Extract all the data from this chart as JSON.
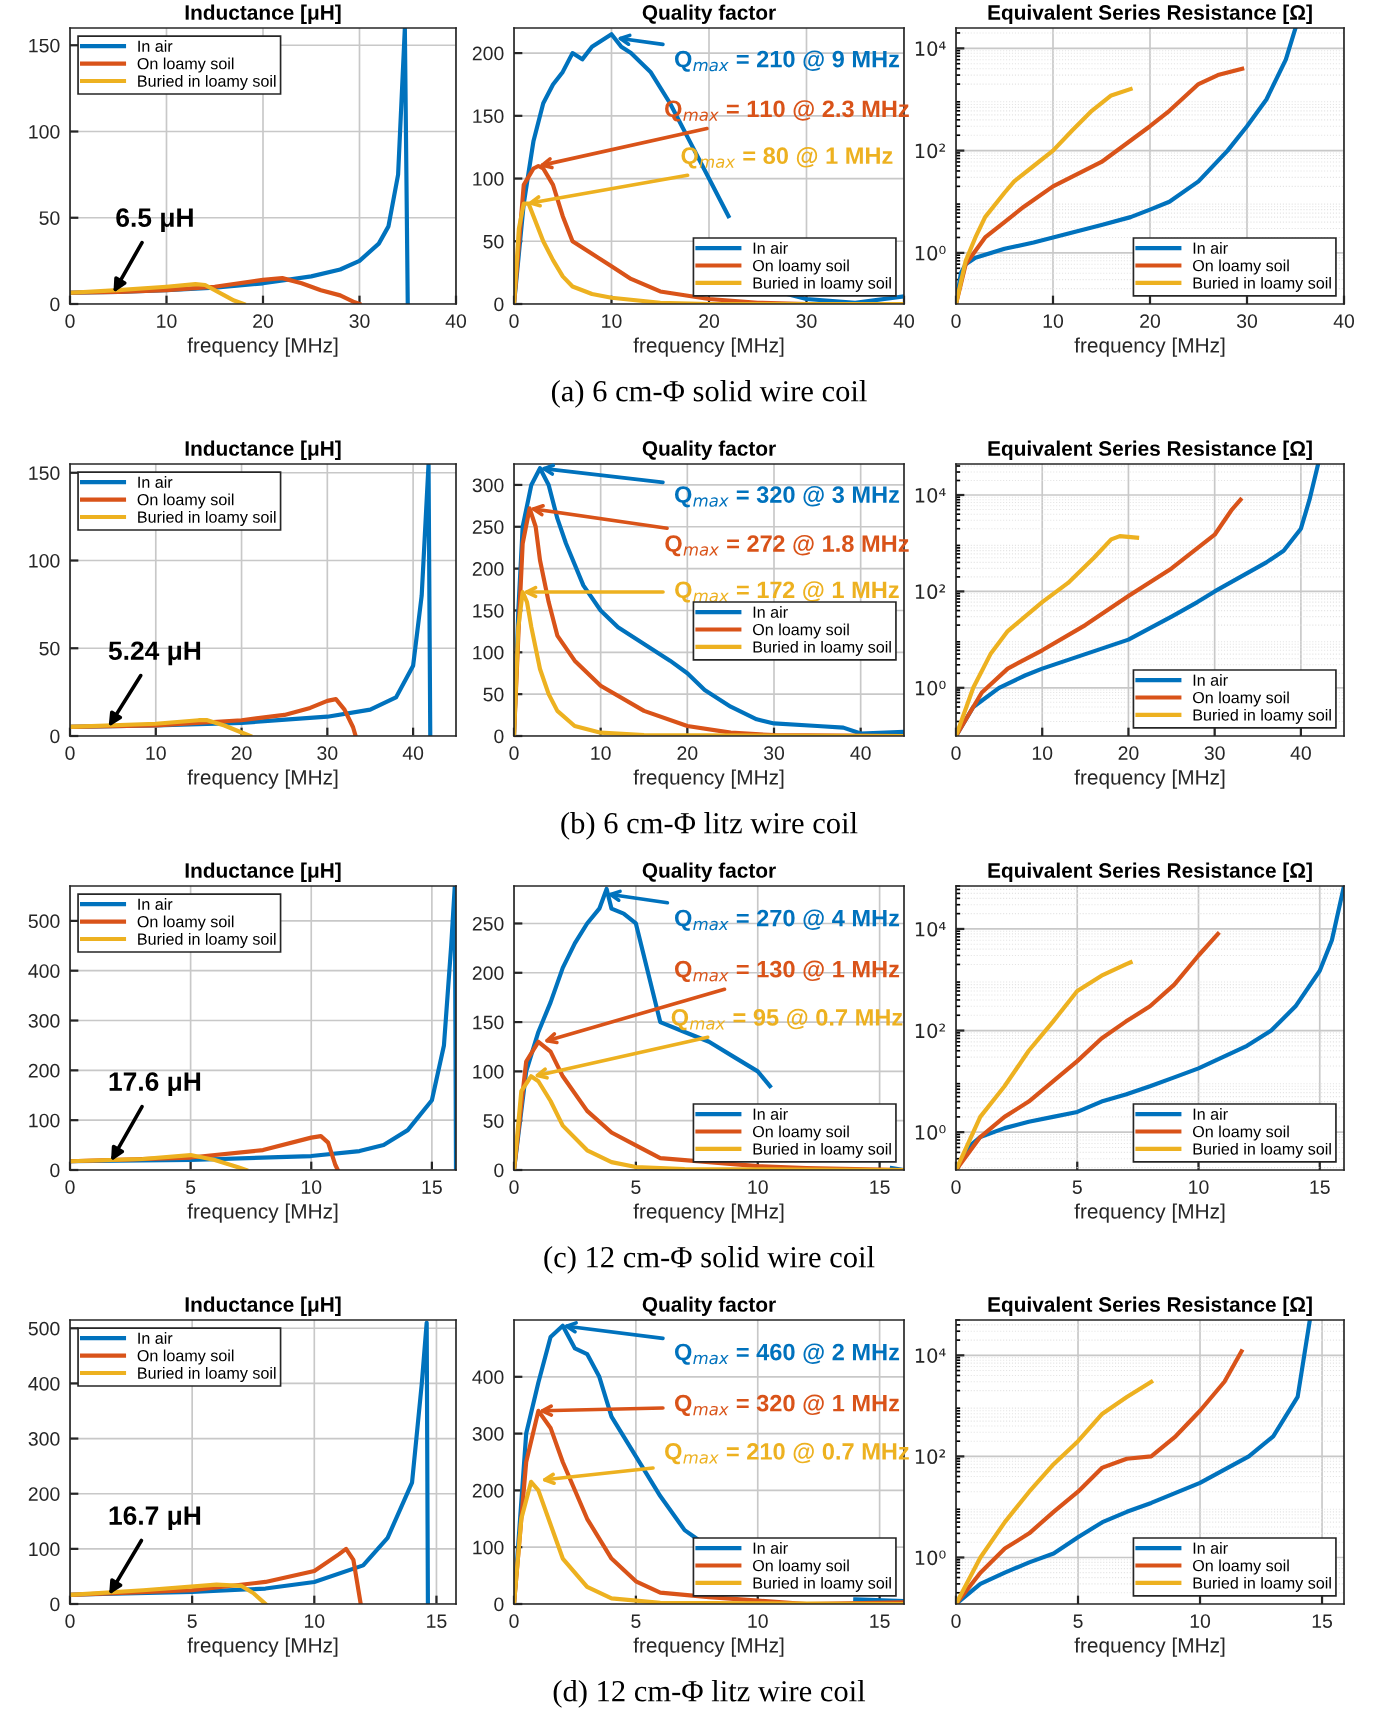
{
  "chart_data": [
    {
      "type": "line",
      "title": "Inductance [μH]",
      "xlabel": "frequency [MHz]",
      "xlim": [
        0,
        40
      ],
      "xticks": [
        0,
        10,
        20,
        30,
        40
      ],
      "ylim": [
        0,
        160
      ],
      "yticks": [
        0,
        50,
        100,
        150
      ],
      "grid": true,
      "legend": "top left",
      "series": [
        {
          "name": "In air",
          "color": "#0072bd",
          "x": [
            0,
            5,
            10,
            15,
            20,
            25,
            28,
            30,
            32,
            33,
            34,
            34.7,
            35
          ],
          "values": [
            6.5,
            7,
            8,
            9.5,
            12,
            16,
            20,
            25,
            35,
            45,
            75,
            160,
            0
          ]
        },
        {
          "name": "On loamy soil",
          "color": "#d95319",
          "x": [
            0,
            5,
            10,
            15,
            20,
            22,
            24,
            26,
            28,
            29.5,
            30
          ],
          "values": [
            6.5,
            7,
            8,
            10,
            14,
            15,
            12,
            8,
            5,
            1,
            0
          ]
        },
        {
          "name": "Buried in loamy soil",
          "color": "#edb120",
          "x": [
            0,
            5,
            10,
            13,
            14,
            16,
            17,
            18
          ],
          "values": [
            6.5,
            8,
            10,
            11.5,
            11,
            5,
            2,
            0
          ]
        }
      ],
      "annotations": [
        {
          "text": "6.5 μH",
          "x": 4.5,
          "y": 6.5
        }
      ]
    },
    {
      "type": "line",
      "title": "Quality factor",
      "xlabel": "frequency [MHz]",
      "xlim": [
        0,
        40
      ],
      "xticks": [
        0,
        10,
        20,
        30,
        40
      ],
      "ylim": [
        0,
        220
      ],
      "yticks": [
        0,
        50,
        100,
        150,
        200
      ],
      "grid": true,
      "legend": "bottom right",
      "series": [
        {
          "name": "In air",
          "color": "#0072bd",
          "x": [
            0,
            1,
            2,
            3,
            4,
            5,
            6,
            7,
            8,
            9,
            10,
            11,
            12,
            14,
            16,
            18,
            20,
            22,
            24,
            27,
            28,
            30,
            35,
            40
          ],
          "values": [
            0,
            80,
            130,
            160,
            175,
            185,
            200,
            195,
            205,
            210,
            215,
            205,
            200,
            185,
            160,
            130,
            100,
            70,
            null,
            null,
            8,
            4,
            1,
            6
          ]
        },
        {
          "name": "On loamy soil",
          "color": "#d95319",
          "x": [
            0,
            1,
            2,
            2.5,
            3,
            4,
            5,
            6,
            7,
            8,
            10,
            12,
            15,
            20,
            25,
            30,
            40
          ],
          "values": [
            0,
            95,
            108,
            110,
            108,
            95,
            70,
            50,
            45,
            40,
            30,
            20,
            10,
            4,
            1,
            0,
            0
          ]
        },
        {
          "name": "Buried in loamy soil",
          "color": "#edb120",
          "x": [
            0,
            0.5,
            1,
            1.5,
            2,
            3,
            4,
            5,
            6,
            8,
            10,
            15,
            20,
            40
          ],
          "values": [
            0,
            60,
            80,
            80,
            70,
            50,
            35,
            22,
            14,
            8,
            5,
            1,
            0,
            0
          ]
        }
      ],
      "annotations": [
        {
          "text": "Q$_{max}$ = 210 @ 9 MHz",
          "x": 10.5,
          "y": 212
        },
        {
          "text": "Q$_{max}$ = 110 @ 2.3 MHz",
          "x": 2.5,
          "y": 110
        },
        {
          "text": "Q$_{max}$ = 80 @ 1 MHz",
          "x": 1.3,
          "y": 80
        },
        "(a) 6 cm-Φ solid wire coil"
      ]
    },
    {
      "type": "line",
      "title": "Equivalent Series Resistance [Ω]",
      "xlabel": "frequency [MHz]",
      "xlim": [
        0,
        40
      ],
      "xticks": [
        0,
        10,
        20,
        30,
        40
      ],
      "log": true,
      "ylim": [
        0.1,
        25000
      ],
      "yticks": [
        {
          "value": 1,
          "label": "10⁰"
        },
        {
          "value": 100,
          "label": "10²"
        },
        {
          "value": 10000,
          "label": "10⁴"
        }
      ],
      "grid": true,
      "legend": "bottom right",
      "series": [
        {
          "name": "In air",
          "color": "#0072bd",
          "x": [
            0,
            0.5,
            1,
            2,
            5,
            8,
            10,
            12,
            15,
            18,
            20,
            22,
            25,
            28,
            30,
            32,
            34,
            35
          ],
          "values": [
            0.1,
            0.4,
            0.6,
            0.8,
            1.2,
            1.6,
            2,
            2.5,
            3.5,
            5,
            7,
            10,
            25,
            100,
            300,
            1000,
            6000,
            25000
          ]
        },
        {
          "name": "On loamy soil",
          "color": "#d95319",
          "x": [
            0,
            1,
            3,
            5,
            7,
            10,
            15,
            20,
            22,
            25,
            27,
            29.5
          ],
          "values": [
            0.1,
            0.6,
            2,
            4,
            8,
            20,
            60,
            300,
            600,
            2000,
            3000,
            4000
          ]
        },
        {
          "name": "Buried in loamy soil",
          "color": "#edb120",
          "x": [
            0,
            1,
            2,
            3,
            5,
            6,
            8,
            10,
            12,
            14,
            16,
            18
          ],
          "values": [
            0.1,
            0.7,
            2,
            5,
            15,
            25,
            50,
            100,
            250,
            600,
            1200,
            1600
          ]
        }
      ]
    },
    {
      "type": "line",
      "title": "Inductance [μH]",
      "xlabel": "frequency [MHz]",
      "xlim": [
        0,
        45
      ],
      "xticks": [
        0,
        10,
        20,
        30,
        40
      ],
      "ylim": [
        0,
        155
      ],
      "yticks": [
        0,
        50,
        100,
        150
      ],
      "grid": true,
      "legend": "top left",
      "series": [
        {
          "name": "In air",
          "color": "#0072bd",
          "x": [
            0,
            10,
            20,
            30,
            35,
            38,
            40,
            41,
            41.8,
            42
          ],
          "values": [
            5.24,
            6,
            7.5,
            11,
            15,
            22,
            40,
            80,
            155,
            0
          ]
        },
        {
          "name": "On loamy soil",
          "color": "#d95319",
          "x": [
            0,
            10,
            20,
            25,
            28,
            30,
            31,
            32,
            33,
            33.3
          ],
          "values": [
            5.24,
            6,
            9,
            12,
            16,
            20,
            21,
            15,
            5,
            0
          ]
        },
        {
          "name": "Buried in loamy soil",
          "color": "#edb120",
          "x": [
            0,
            10,
            15,
            16,
            18,
            20,
            21
          ],
          "values": [
            5.24,
            7,
            9,
            9,
            6,
            2,
            0
          ]
        }
      ],
      "annotations": [
        {
          "text": "5.24 μH",
          "x": 4.5,
          "y": 5.24
        }
      ]
    },
    {
      "type": "line",
      "title": "Quality factor",
      "xlabel": "frequency [MHz]",
      "xlim": [
        0,
        45
      ],
      "xticks": [
        0,
        10,
        20,
        30,
        40
      ],
      "ylim": [
        0,
        325
      ],
      "yticks": [
        0,
        50,
        100,
        150,
        200,
        250,
        300
      ],
      "grid": true,
      "legend": "right",
      "series": [
        {
          "name": "In air",
          "color": "#0072bd",
          "x": [
            0,
            0.5,
            1,
            2,
            3,
            4,
            5,
            6,
            8,
            10,
            12,
            15,
            18,
            20,
            22,
            25,
            28,
            30,
            35,
            38,
            40,
            45
          ],
          "values": [
            0,
            150,
            250,
            300,
            320,
            300,
            260,
            230,
            180,
            150,
            130,
            110,
            90,
            75,
            55,
            35,
            20,
            15,
            12,
            10,
            3,
            5
          ]
        },
        {
          "name": "On loamy soil",
          "color": "#d95319",
          "x": [
            0,
            0.5,
            1,
            1.8,
            2.5,
            3,
            4,
            5,
            7,
            10,
            15,
            20,
            25,
            30,
            45
          ],
          "values": [
            0,
            120,
            230,
            272,
            250,
            210,
            160,
            120,
            90,
            60,
            30,
            12,
            4,
            1,
            0
          ]
        },
        {
          "name": "Buried in loamy soil",
          "color": "#edb120",
          "x": [
            0,
            0.5,
            1,
            1.5,
            2,
            3,
            4,
            5,
            7,
            10,
            15,
            45
          ],
          "values": [
            0,
            130,
            172,
            160,
            130,
            80,
            50,
            30,
            12,
            4,
            1,
            0
          ]
        }
      ],
      "annotations": [
        {
          "text": "Q$_{max}$ = 320 @ 3 MHz",
          "x": 3,
          "y": 320
        },
        {
          "text": "Q$_{max}$ = 272 @ 1.8 MHz",
          "x": 1.8,
          "y": 272
        },
        {
          "text": "Q$_{max}$ = 172 @ 1 MHz",
          "x": 1,
          "y": 172
        },
        "(b) 6 cm-Φ litz wire coil"
      ]
    },
    {
      "type": "line",
      "title": "Equivalent Series Resistance [Ω]",
      "xlabel": "frequency [MHz]",
      "xlim": [
        0,
        45
      ],
      "xticks": [
        0,
        10,
        20,
        30,
        40
      ],
      "log": true,
      "ylim": [
        0.1,
        44000
      ],
      "yticks": [
        {
          "value": 1,
          "label": "10⁰"
        },
        {
          "value": 100,
          "label": "10²"
        },
        {
          "value": 10000,
          "label": "10⁴"
        }
      ],
      "grid": true,
      "legend": "bottom right",
      "series": [
        {
          "name": "In air",
          "color": "#0072bd",
          "x": [
            0,
            2,
            5,
            8,
            10,
            15,
            20,
            25,
            28,
            30,
            33,
            36,
            38,
            40,
            41,
            42
          ],
          "values": [
            0.1,
            0.4,
            1,
            1.8,
            2.5,
            5,
            10,
            30,
            60,
            100,
            200,
            400,
            700,
            2000,
            8000,
            44000
          ]
        },
        {
          "name": "On loamy soil",
          "color": "#d95319",
          "x": [
            0,
            3,
            6,
            10,
            15,
            20,
            25,
            30,
            32,
            33
          ],
          "values": [
            0.1,
            0.8,
            2.5,
            6,
            20,
            80,
            300,
            1500,
            5000,
            8000
          ]
        },
        {
          "name": "Buried in loamy soil",
          "color": "#edb120",
          "x": [
            0,
            2,
            4,
            6,
            8,
            10,
            13,
            16,
            18,
            19,
            21
          ],
          "values": [
            0.1,
            1,
            5,
            15,
            30,
            60,
            150,
            500,
            1200,
            1400,
            1300
          ]
        }
      ]
    },
    {
      "type": "line",
      "title": "Inductance [μH]",
      "xlabel": "frequency [MHz]",
      "xlim": [
        0,
        16
      ],
      "xticks": [
        0,
        5,
        10,
        15
      ],
      "ylim": [
        0,
        570
      ],
      "yticks": [
        0,
        100,
        200,
        300,
        400,
        500
      ],
      "grid": true,
      "legend": "top left",
      "series": [
        {
          "name": "In air",
          "color": "#0072bd",
          "x": [
            0,
            5,
            10,
            12,
            13,
            14,
            15,
            15.5,
            15.8,
            15.95,
            16
          ],
          "values": [
            17.6,
            20,
            28,
            38,
            50,
            80,
            140,
            250,
            450,
            570,
            0
          ]
        },
        {
          "name": "On loamy soil",
          "color": "#d95319",
          "x": [
            0,
            5,
            8,
            10,
            10.4,
            10.7,
            11,
            11.1
          ],
          "values": [
            17.6,
            25,
            40,
            65,
            68,
            55,
            10,
            0
          ]
        },
        {
          "name": "Buried in loamy soil",
          "color": "#edb120",
          "x": [
            0,
            3,
            5,
            6,
            7,
            7.3
          ],
          "values": [
            17.6,
            22,
            30,
            20,
            5,
            0
          ]
        }
      ],
      "annotations": [
        {
          "text": "17.6 μH",
          "x": 1.7,
          "y": 17.6
        }
      ]
    },
    {
      "type": "line",
      "title": "Quality factor",
      "xlabel": "frequency [MHz]",
      "xlim": [
        0,
        16
      ],
      "xticks": [
        0,
        5,
        10,
        15
      ],
      "ylim": [
        0,
        288
      ],
      "yticks": [
        0,
        50,
        100,
        150,
        200,
        250
      ],
      "grid": true,
      "legend": "bottom right",
      "series": [
        {
          "name": "In air",
          "color": "#0072bd",
          "x": [
            0,
            0.5,
            1,
            1.5,
            2,
            2.5,
            3,
            3.5,
            3.8,
            4,
            4.5,
            5,
            5.5,
            6,
            7,
            8,
            9,
            10,
            10.5,
            11,
            15,
            15.5,
            16
          ],
          "values": [
            0,
            100,
            140,
            170,
            205,
            230,
            250,
            265,
            285,
            265,
            260,
            250,
            200,
            150,
            140,
            130,
            115,
            100,
            85,
            null,
            null,
            2,
            0
          ]
        },
        {
          "name": "On loamy soil",
          "color": "#d95319",
          "x": [
            0,
            0.5,
            1,
            1.5,
            2,
            3,
            4,
            5,
            6,
            8,
            10,
            12,
            16
          ],
          "values": [
            0,
            110,
            130,
            120,
            95,
            60,
            38,
            25,
            12,
            8,
            4,
            2,
            0
          ]
        },
        {
          "name": "Buried in loamy soil",
          "color": "#edb120",
          "x": [
            0,
            0.3,
            0.7,
            1,
            1.5,
            2,
            3,
            4,
            5,
            7,
            16
          ],
          "values": [
            0,
            80,
            95,
            90,
            70,
            45,
            20,
            8,
            3,
            1,
            0
          ]
        }
      ],
      "annotations": [
        {
          "text": "Q$_{max}$ = 270 @ 4 MHz",
          "x": 3.8,
          "y": 280
        },
        {
          "text": "Q$_{max}$ = 130 @ 1 MHz",
          "x": 1.2,
          "y": 130
        },
        {
          "text": "Q$_{max}$ = 95 @ 0.7 MHz",
          "x": 0.8,
          "y": 95
        },
        "(c) 12 cm-Φ solid wire coil"
      ]
    },
    {
      "type": "line",
      "title": "Equivalent Series Resistance [Ω]",
      "xlabel": "frequency [MHz]",
      "xlim": [
        0,
        16
      ],
      "xticks": [
        0,
        5,
        10,
        15
      ],
      "log": true,
      "ylim": [
        0.18,
        70000
      ],
      "yticks": [
        {
          "value": 1,
          "label": "10⁰"
        },
        {
          "value": 100,
          "label": "10²"
        },
        {
          "value": 10000,
          "label": "10⁴"
        }
      ],
      "grid": true,
      "legend": "bottom right",
      "series": [
        {
          "name": "In air",
          "color": "#0072bd",
          "x": [
            0,
            0.5,
            1,
            2,
            3,
            4,
            5,
            6,
            7,
            8,
            9,
            10,
            11,
            12,
            13,
            14,
            15,
            15.5,
            16
          ],
          "values": [
            0.18,
            0.5,
            0.8,
            1.2,
            1.6,
            2,
            2.5,
            4,
            5.5,
            8,
            12,
            18,
            30,
            50,
            100,
            300,
            1500,
            6000,
            70000
          ]
        },
        {
          "name": "On loamy soil",
          "color": "#d95319",
          "x": [
            0,
            1,
            2,
            3,
            4,
            5,
            6,
            7,
            8,
            9,
            10,
            10.8
          ],
          "values": [
            0.18,
            0.8,
            2,
            4,
            10,
            25,
            70,
            150,
            300,
            800,
            3000,
            8000
          ]
        },
        {
          "name": "Buried in loamy soil",
          "color": "#edb120",
          "x": [
            0,
            1,
            2,
            3,
            4,
            5,
            6,
            7,
            7.2
          ],
          "values": [
            0.18,
            2,
            8,
            40,
            150,
            600,
            1200,
            2000,
            2200
          ]
        }
      ]
    },
    {
      "type": "line",
      "title": "Inductance [μH]",
      "xlabel": "frequency [MHz]",
      "xlim": [
        0,
        15.8
      ],
      "xticks": [
        0,
        5,
        10,
        15
      ],
      "ylim": [
        0,
        515
      ],
      "yticks": [
        0,
        100,
        200,
        300,
        400,
        500
      ],
      "grid": true,
      "legend": "top left",
      "series": [
        {
          "name": "In air",
          "color": "#0072bd",
          "x": [
            0,
            5,
            8,
            10,
            12,
            13,
            14,
            14.4,
            14.6,
            14.65
          ],
          "values": [
            16.7,
            22,
            28,
            40,
            70,
            120,
            220,
            400,
            510,
            0
          ]
        },
        {
          "name": "On loamy soil",
          "color": "#d95319",
          "x": [
            0,
            5,
            8,
            10,
            11,
            11.3,
            11.6,
            11.9
          ],
          "values": [
            16.7,
            25,
            40,
            60,
            90,
            100,
            80,
            0
          ]
        },
        {
          "name": "Buried in loamy soil",
          "color": "#edb120",
          "x": [
            0,
            3,
            6,
            7,
            7.5,
            8
          ],
          "values": [
            16.7,
            25,
            35,
            33,
            20,
            0
          ]
        }
      ],
      "annotations": [
        {
          "text": "16.7 μH",
          "x": 1.6,
          "y": 16.7
        }
      ]
    },
    {
      "type": "line",
      "title": "Quality factor",
      "xlabel": "frequency [MHz]",
      "xlim": [
        0,
        16
      ],
      "xticks": [
        0,
        5,
        10,
        15
      ],
      "ylim": [
        0,
        500
      ],
      "yticks": [
        0,
        100,
        200,
        300,
        400
      ],
      "grid": true,
      "legend": "bottom right",
      "series": [
        {
          "name": "In air",
          "color": "#0072bd",
          "x": [
            0,
            0.5,
            1,
            1.5,
            2,
            2.5,
            3,
            3.5,
            4,
            5,
            6,
            7,
            7.5,
            8,
            13.5,
            14,
            16
          ],
          "values": [
            0,
            300,
            390,
            470,
            490,
            450,
            440,
            400,
            330,
            260,
            190,
            130,
            115,
            null,
            null,
            8,
            5
          ]
        },
        {
          "name": "On loamy soil",
          "color": "#d95319",
          "x": [
            0,
            0.5,
            1,
            1.5,
            2,
            3,
            4,
            5,
            6,
            8,
            10,
            12,
            16
          ],
          "values": [
            0,
            250,
            340,
            310,
            250,
            150,
            80,
            40,
            20,
            12,
            6,
            0,
            3
          ]
        },
        {
          "name": "Buried in loamy soil",
          "color": "#edb120",
          "x": [
            0,
            0.3,
            0.7,
            1,
            1.5,
            2,
            3,
            4,
            6,
            16
          ],
          "values": [
            0,
            150,
            215,
            200,
            140,
            80,
            30,
            10,
            2,
            0
          ]
        }
      ],
      "annotations": [
        {
          "text": "Q$_{max}$ = 460 @ 2 MHz",
          "x": 2,
          "y": 490
        },
        {
          "text": "Q$_{max}$ = 320 @ 1 MHz",
          "x": 1,
          "y": 340
        },
        {
          "text": "Q$_{max}$ = 210 @ 0.7 MHz",
          "x": 1.1,
          "y": 218
        },
        "(d) 12 cm-Φ litz wire coil"
      ]
    },
    {
      "type": "line",
      "title": "Equivalent Series Resistance [Ω]",
      "xlabel": "frequency [MHz]",
      "xlim": [
        0,
        15.9
      ],
      "xticks": [
        0,
        5,
        10,
        15
      ],
      "log": true,
      "ylim": [
        0.12,
        50000
      ],
      "yticks": [
        {
          "value": 1,
          "label": "10⁰"
        },
        {
          "value": 100,
          "label": "10²"
        },
        {
          "value": 10000,
          "label": "10⁴"
        }
      ],
      "grid": true,
      "legend": "bottom right",
      "series": [
        {
          "name": "In air",
          "color": "#0072bd",
          "x": [
            0,
            1,
            2,
            3,
            4,
            5,
            6,
            7,
            8,
            10,
            12,
            13,
            14,
            14.5
          ],
          "values": [
            0.12,
            0.3,
            0.5,
            0.8,
            1.2,
            2.5,
            5,
            8,
            12,
            30,
            100,
            250,
            1500,
            50000
          ]
        },
        {
          "name": "On loamy soil",
          "color": "#d95319",
          "x": [
            0,
            1,
            2,
            3,
            4,
            5,
            6,
            7,
            8,
            9,
            10,
            11,
            11.7
          ],
          "values": [
            0.12,
            0.5,
            1.5,
            3,
            8,
            20,
            60,
            90,
            100,
            250,
            800,
            3000,
            12000
          ]
        },
        {
          "name": "Buried in loamy soil",
          "color": "#edb120",
          "x": [
            0,
            1,
            2,
            3,
            4,
            5,
            6,
            7,
            8
          ],
          "values": [
            0.12,
            1,
            5,
            20,
            70,
            200,
            700,
            1500,
            3000
          ]
        }
      ]
    }
  ]
}
